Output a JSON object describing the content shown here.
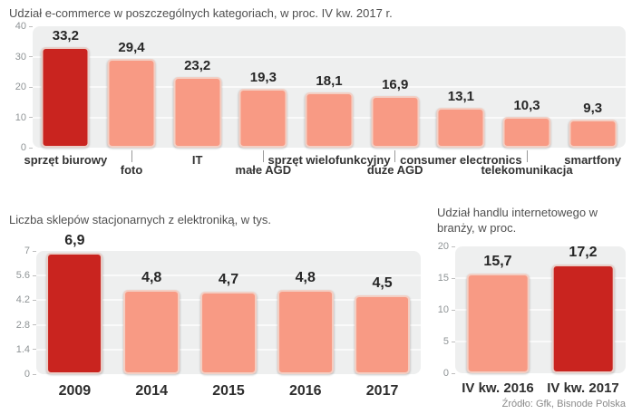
{
  "source": "Źródło: Gfk, Bisnode Polska",
  "colors": {
    "highlight": "#c9241f",
    "bar": "#f89a84",
    "bar_border": "#f3cfc4",
    "plot_bg": "#eeefef",
    "gridline": "#fafafa"
  },
  "chart_data": [
    {
      "type": "bar",
      "title": "Udział e-commerce w poszczególnych kategoriach, w proc. IV kw. 2017 r.",
      "categories": [
        "sprzęt biurowy",
        "foto",
        "IT",
        "małe AGD",
        "sprzęt wielofunkcyjny",
        "duże AGD",
        "consumer electronics",
        "telekomunikacja",
        "smartfony"
      ],
      "values": [
        33.2,
        29.4,
        23.2,
        19.3,
        18.1,
        16.9,
        13.1,
        10.3,
        9.3
      ],
      "value_labels": [
        "33,2",
        "29,4",
        "23,2",
        "19,3",
        "18,1",
        "16,9",
        "13,1",
        "10,3",
        "9,3"
      ],
      "label_rows": [
        0,
        1,
        0,
        1,
        0,
        1,
        0,
        1,
        0
      ],
      "highlight_index": 0,
      "ylim": [
        0,
        40
      ],
      "yticks": [
        40,
        30,
        20,
        10,
        0
      ],
      "ytick_labels": [
        "40",
        "30",
        "20",
        "10",
        "0"
      ],
      "grid": true,
      "legend": "none"
    },
    {
      "type": "bar",
      "title": "Liczba sklepów stacjonarnych z elektroniką, w tys.",
      "categories": [
        "2009",
        "2014",
        "2015",
        "2016",
        "2017"
      ],
      "values": [
        6.9,
        4.8,
        4.7,
        4.8,
        4.5
      ],
      "value_labels": [
        "6,9",
        "4,8",
        "4,7",
        "4,8",
        "4,5"
      ],
      "label_rows": [
        0,
        0,
        0,
        0,
        0
      ],
      "highlight_index": 0,
      "ylim": [
        0,
        7
      ],
      "yticks": [
        7,
        5.6,
        4.2,
        2.8,
        1.4,
        0
      ],
      "ytick_labels": [
        "7",
        "5.6",
        "4.2",
        "2.8",
        "1.4",
        "0"
      ],
      "grid": true,
      "legend": "none"
    },
    {
      "type": "bar",
      "title": "Udział handlu internetowego w branży, w proc.",
      "categories": [
        "IV kw. 2016",
        "IV kw. 2017"
      ],
      "values": [
        15.7,
        17.2
      ],
      "value_labels": [
        "15,7",
        "17,2"
      ],
      "label_rows": [
        0,
        0
      ],
      "highlight_index": 1,
      "ylim": [
        0,
        20
      ],
      "yticks": [
        20,
        15,
        10,
        5,
        0
      ],
      "ytick_labels": [
        "20",
        "15",
        "10",
        "5",
        "0"
      ],
      "grid": true,
      "legend": "none"
    }
  ]
}
